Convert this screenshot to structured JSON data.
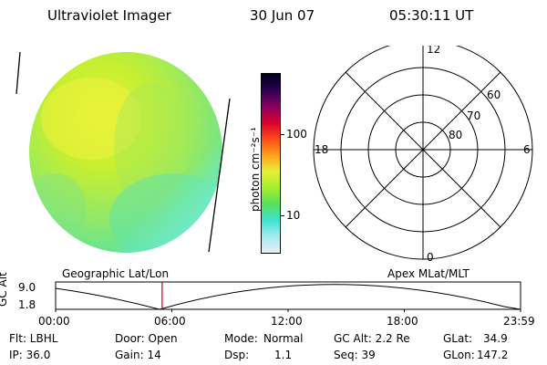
{
  "header": {
    "title": "Ultraviolet Imager",
    "date": "30 Jun 07",
    "time": "05:30:11 UT"
  },
  "colors": {
    "earth_main": "#b8ef2e",
    "earth_bright": "#e6f23a",
    "earth_dim": "#55e2a6",
    "earth_edge": "#86f2ee",
    "scale_stops": [
      "#e6f0f4",
      "#a6ebf2",
      "#3ee2d2",
      "#56e25a",
      "#a6ee2a",
      "#e6ee3a",
      "#ffa018",
      "#ff4a18",
      "#d80030",
      "#8a0060",
      "#2a0050",
      "#000020"
    ],
    "marker": "#cc0000"
  },
  "colorbar": {
    "axis_label": "photon cm⁻²s⁻¹",
    "tick_100": "100",
    "tick_10": "10"
  },
  "polar_plot": {
    "label_top": "12",
    "label_left": "18",
    "label_right": "6",
    "label_bottom": "0",
    "ring_labels": [
      "60",
      "70",
      "80"
    ]
  },
  "altitude_strip": {
    "ylabel": "GC Alt",
    "ymax": "9.0",
    "ymin": "1.8",
    "left_caption": "Geographic Lat/Lon",
    "right_caption": "Apex MLat/MLT",
    "time_ticks": [
      "00:00",
      "06:00",
      "12:00",
      "18:00",
      "23:59"
    ],
    "current_time_hours": 5.5
  },
  "info": {
    "filter": "Flt: LBHL",
    "ip": "IP: 36.0",
    "door": "Door: Open",
    "gain": "Gain: 14",
    "mode_label": "Mode:",
    "mode_value": "Normal",
    "dsp_label": "Dsp:",
    "dsp_value": "1.1",
    "gc_alt": "GC Alt: 2.2 Re",
    "seq": "Seq: 39",
    "glat_label": "GLat:",
    "glat_value": "34.9",
    "glon_label": "GLon:",
    "glon_value": "147.2"
  }
}
